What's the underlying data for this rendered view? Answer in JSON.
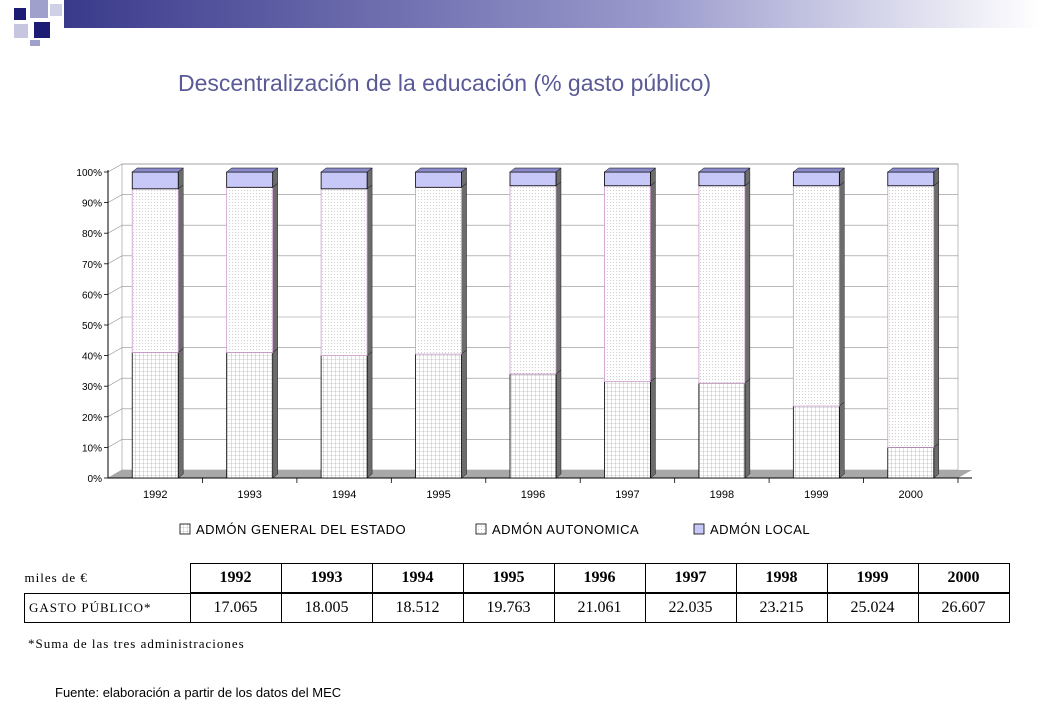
{
  "slide": {
    "title": "Descentralización de la educación (% gasto público)",
    "source": "Fuente: elaboración a partir de los datos del MEC"
  },
  "chart_data": {
    "type": "bar",
    "stacked": true,
    "percent": true,
    "categories": [
      "1992",
      "1993",
      "1994",
      "1995",
      "1996",
      "1997",
      "1998",
      "1999",
      "2000"
    ],
    "series": [
      {
        "name": "ADMÓN GENERAL DEL ESTADO",
        "values": [
          41,
          41,
          40,
          40.5,
          34,
          31.5,
          31,
          23.5,
          10
        ]
      },
      {
        "name": "ADMÓN AUTONOMICA",
        "values": [
          53.5,
          54,
          54.5,
          54.5,
          61.5,
          64,
          64.5,
          72,
          85.5
        ]
      },
      {
        "name": "ADMÓN LOCAL",
        "values": [
          5.5,
          5,
          5.5,
          5,
          4.5,
          4.5,
          4.5,
          4.5,
          4.5
        ]
      }
    ],
    "yticks": [
      "0%",
      "10%",
      "20%",
      "30%",
      "40%",
      "50%",
      "60%",
      "70%",
      "80%",
      "90%",
      "100%"
    ],
    "ylim": [
      0,
      100
    ],
    "legend_position": "bottom",
    "grid": true,
    "colors": {
      "estado": "#ffffff",
      "autonomica": "#ffffff",
      "local": "#c8c8f8",
      "autonomica_border": "#cc99cc"
    }
  },
  "table": {
    "unit_label": "miles de €",
    "years": [
      "1992",
      "1993",
      "1994",
      "1995",
      "1996",
      "1997",
      "1998",
      "1999",
      "2000"
    ],
    "row_label": "GASTO PÚBLICO*",
    "values": [
      "17.065",
      "18.005",
      "18.512",
      "19.763",
      "21.061",
      "22.035",
      "23.215",
      "25.024",
      "26.607"
    ],
    "footnote": "*Suma de las tres administraciones"
  }
}
